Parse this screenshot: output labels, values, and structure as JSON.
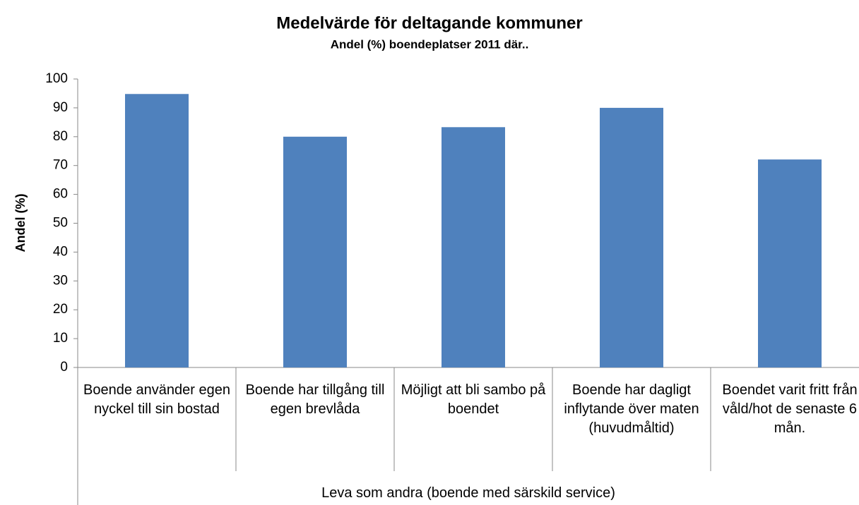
{
  "chart_data": {
    "type": "bar",
    "title": "Medelvärde för deltagande kommuner",
    "subtitle": "Andel (%) boendeplatser 2011 där..",
    "y_label": "Andel (%)",
    "categories": [
      "Boende använder egen nyckel till sin bostad",
      "Boende har tillgång till egen brevlåda",
      "Möjligt att bli sambo på boendet",
      "Boende har dagligt inflytande över maten (huvudmåltid)",
      "Boendet varit fritt från våld/hot de senaste 6 mån."
    ],
    "category_group": "Leva som andra (boende med särskild service)",
    "values": [
      94.8,
      80,
      83.3,
      90,
      72.1
    ],
    "color": "#4f81bd",
    "ylim": [
      0,
      100
    ],
    "yticks": [
      0,
      10,
      20,
      30,
      40,
      50,
      60,
      70,
      80,
      90,
      100
    ],
    "grid": false
  }
}
